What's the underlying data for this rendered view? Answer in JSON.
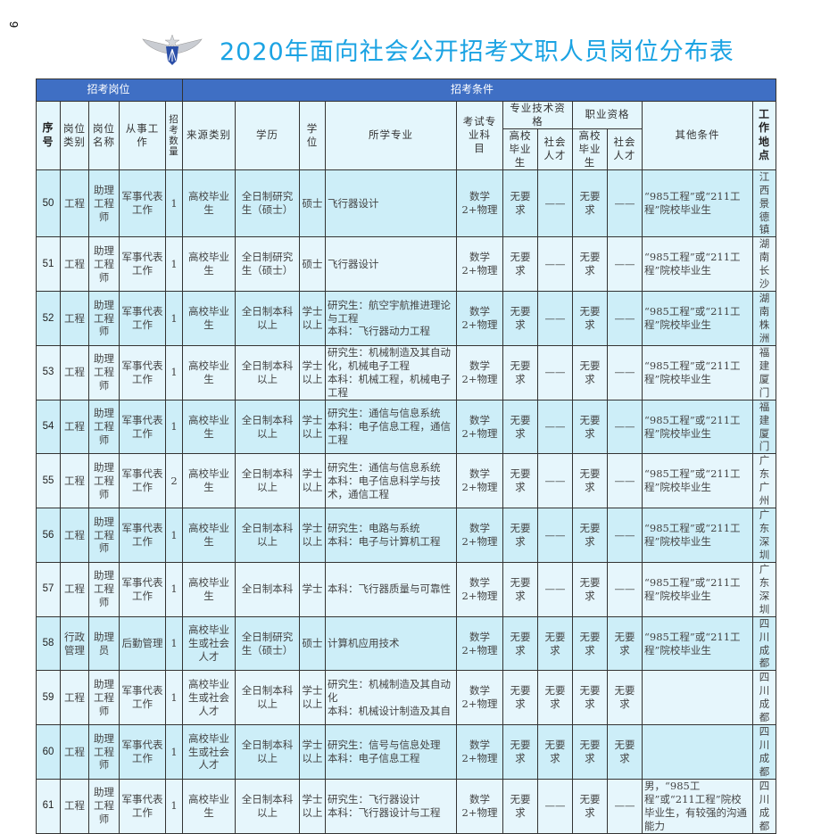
{
  "page_number": "9",
  "title": "2020年面向社会公开招考文职人员岗位分布表",
  "header": {
    "group_position": "招考岗位",
    "group_conditions": "招考条件",
    "columns": {
      "seq": "序号",
      "category": "岗位类别",
      "name": "岗位名称",
      "work": "从事工作",
      "count": "招考数量",
      "source": "来源类别",
      "education": "学历",
      "degree": "学位",
      "major": "所学专业",
      "exam": "考试专业科　目",
      "tech_qual": "专业技术资格",
      "job_qual": "职业资格",
      "grad": "高校毕业生",
      "social": "社会人才",
      "other": "其他条件",
      "location": "工作地点"
    }
  },
  "rows": [
    {
      "seq": "50",
      "category": "工程",
      "name": "助理工程师",
      "work": "军事代表工作",
      "count": "1",
      "source": "高校毕业生",
      "education": "全日制研究生（硕士）",
      "degree": "硕士",
      "major": "飞行器设计",
      "exam": "数学2+物理",
      "tech_grad": "无要求",
      "tech_social": "——",
      "job_grad": "无要求",
      "job_social": "——",
      "other": "“985工程”或“211工程”院校毕业生",
      "location": "江西景德镇"
    },
    {
      "seq": "51",
      "category": "工程",
      "name": "助理工程师",
      "work": "军事代表工作",
      "count": "1",
      "source": "高校毕业生",
      "education": "全日制研究生（硕士）",
      "degree": "硕士",
      "major": "飞行器设计",
      "exam": "数学2+物理",
      "tech_grad": "无要求",
      "tech_social": "——",
      "job_grad": "无要求",
      "job_social": "——",
      "other": "“985工程”或“211工程”院校毕业生",
      "location": "湖南长沙"
    },
    {
      "seq": "52",
      "category": "工程",
      "name": "助理工程师",
      "work": "军事代表工作",
      "count": "1",
      "source": "高校毕业生",
      "education": "全日制本科以上",
      "degree": "学士以上",
      "major": "研究生：航空宇航推进理论与工程\n本科：飞行器动力工程",
      "exam": "数学2+物理",
      "tech_grad": "无要求",
      "tech_social": "——",
      "job_grad": "无要求",
      "job_social": "——",
      "other": "“985工程”或“211工程”院校毕业生",
      "location": "湖南株洲"
    },
    {
      "seq": "53",
      "category": "工程",
      "name": "助理工程师",
      "work": "军事代表工作",
      "count": "1",
      "source": "高校毕业生",
      "education": "全日制本科以上",
      "degree": "学士以上",
      "major": "研究生：机械制造及其自动化，机械电子工程\n本科：机械工程，机械电子工程",
      "exam": "数学2+物理",
      "tech_grad": "无要求",
      "tech_social": "——",
      "job_grad": "无要求",
      "job_social": "——",
      "other": "“985工程”或“211工程”院校毕业生",
      "location": "福建厦门"
    },
    {
      "seq": "54",
      "category": "工程",
      "name": "助理工程师",
      "work": "军事代表工作",
      "count": "1",
      "source": "高校毕业生",
      "education": "全日制本科以上",
      "degree": "学士以上",
      "major": "研究生：通信与信息系统\n本科：电子信息工程，通信工程",
      "exam": "数学2+物理",
      "tech_grad": "无要求",
      "tech_social": "——",
      "job_grad": "无要求",
      "job_social": "——",
      "other": "“985工程”或“211工程”院校毕业生",
      "location": "福建厦门"
    },
    {
      "seq": "55",
      "category": "工程",
      "name": "助理工程师",
      "work": "军事代表工作",
      "count": "2",
      "source": "高校毕业生",
      "education": "全日制本科以上",
      "degree": "学士以上",
      "major": "研究生：通信与信息系统\n本科：电子信息科学与技术，通信工程",
      "exam": "数学2+物理",
      "tech_grad": "无要求",
      "tech_social": "——",
      "job_grad": "无要求",
      "job_social": "——",
      "other": "“985工程”或“211工程”院校毕业生",
      "location": "广东广州"
    },
    {
      "seq": "56",
      "category": "工程",
      "name": "助理工程师",
      "work": "军事代表工作",
      "count": "1",
      "source": "高校毕业生",
      "education": "全日制本科以上",
      "degree": "学士以上",
      "major": "研究生：电路与系统\n本科：电子与计算机工程",
      "exam": "数学2+物理",
      "tech_grad": "无要求",
      "tech_social": "——",
      "job_grad": "无要求",
      "job_social": "——",
      "other": "“985工程”或“211工程”院校毕业生",
      "location": "广东深圳"
    },
    {
      "seq": "57",
      "category": "工程",
      "name": "助理工程师",
      "work": "军事代表工作",
      "count": "1",
      "source": "高校毕业生",
      "education": "全日制本科",
      "degree": "学士",
      "major": "本科：飞行器质量与可靠性",
      "exam": "数学2+物理",
      "tech_grad": "无要求",
      "tech_social": "——",
      "job_grad": "无要求",
      "job_social": "——",
      "other": "“985工程”或“211工程”院校毕业生",
      "location": "广东深圳"
    },
    {
      "seq": "58",
      "category": "行政管理",
      "name": "助理员",
      "work": "后勤管理",
      "count": "1",
      "source": "高校毕业生或社会人才",
      "education": "全日制研究生（硕士）",
      "degree": "硕士",
      "major": "计算机应用技术",
      "exam": "数学2+物理",
      "tech_grad": "无要求",
      "tech_social": "无要求",
      "job_grad": "无要求",
      "job_social": "无要求",
      "other": "“985工程”或“211工程”院校毕业生",
      "location": "四川成都"
    },
    {
      "seq": "59",
      "category": "工程",
      "name": "助理工程师",
      "work": "军事代表工作",
      "count": "1",
      "source": "高校毕业生或社会人才",
      "education": "全日制本科以上",
      "degree": "学士以上",
      "major": "研究生：机械制造及其自动化\n本科：机械设计制造及其自",
      "exam": "数学2+物理",
      "tech_grad": "无要求",
      "tech_social": "无要求",
      "job_grad": "无要求",
      "job_social": "无要求",
      "other": "",
      "location": "四川成都"
    },
    {
      "seq": "60",
      "category": "工程",
      "name": "助理工程师",
      "work": "军事代表工作",
      "count": "1",
      "source": "高校毕业生或社会人才",
      "education": "全日制本科以上",
      "degree": "学士以上",
      "major": "研究生：信号与信息处理\n本科：电子信息工程",
      "exam": "数学2+物理",
      "tech_grad": "无要求",
      "tech_social": "无要求",
      "job_grad": "无要求",
      "job_social": "无要求",
      "other": "",
      "location": "四川成都"
    },
    {
      "seq": "61",
      "category": "工程",
      "name": "助理工程师",
      "work": "军事代表工作",
      "count": "1",
      "source": "高校毕业生",
      "education": "全日制本科以上",
      "degree": "学士以上",
      "major": "研究生：飞行器设计\n本科：飞行器设计与工程",
      "exam": "数学2+物理",
      "tech_grad": "无要求",
      "tech_social": "——",
      "job_grad": "无要求",
      "job_social": "——",
      "other": "男，“985工程”或“211工程”院校毕业生，有较强的沟通能力",
      "location": "四川成都"
    }
  ],
  "colors": {
    "title": "#1ba3e3",
    "header_band": "#3f6fc4",
    "row_light": "#e6f6fc",
    "row_dark": "#cdeef8"
  },
  "logo_icon": "air-force-wings-emblem"
}
